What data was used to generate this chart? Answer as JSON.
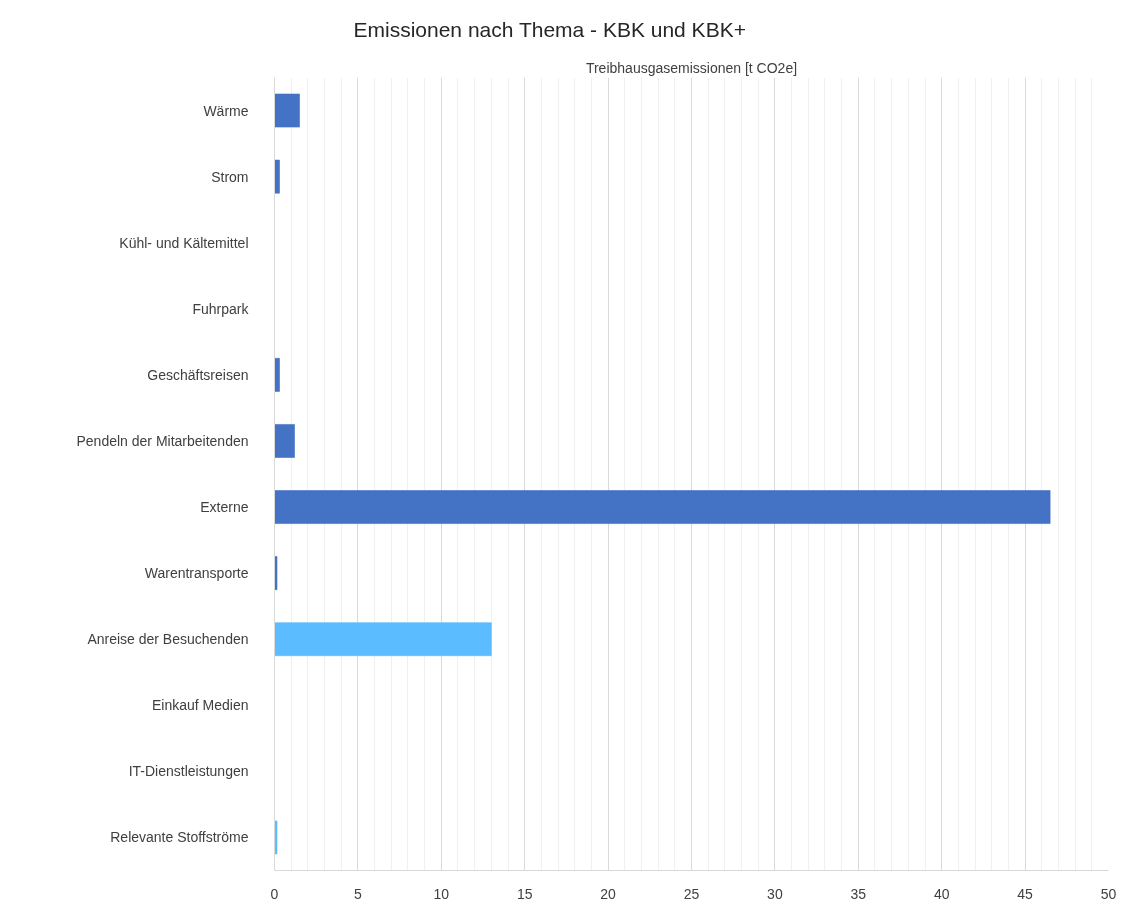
{
  "chart_data": {
    "type": "bar",
    "orientation": "horizontal",
    "title": "Emissionen nach Thema - KBK und KBK+",
    "xlabel": "Treibhausgasemissionen [t CO2e]",
    "categories": [
      "Wärme",
      "Strom",
      "Kühl- und Kältemittel",
      "Fuhrpark",
      "Geschäftsreisen",
      "Pendeln der Mitarbeitenden",
      "Externe",
      "Warentransporte",
      "Anreise der Besuchenden",
      "Einkauf Medien",
      "IT-Dienstleistungen",
      "Relevante Stoffströme"
    ],
    "values": [
      1.5,
      0.3,
      null,
      null,
      0.3,
      1.2,
      46.5,
      0.15,
      13.0,
      null,
      null,
      0.15
    ],
    "colors": [
      "#4472c4",
      "#4472c4",
      "#4472c4",
      "#4472c4",
      "#4472c4",
      "#4472c4",
      "#4472c4",
      "#4472c4",
      "#5bbdff",
      "#5bbdff",
      "#5bbdff",
      "#5bbdff"
    ],
    "xlim": [
      0,
      50
    ],
    "xticks": [
      0,
      5,
      10,
      15,
      20,
      25,
      30,
      35,
      40,
      45,
      50
    ],
    "grid": "x"
  }
}
